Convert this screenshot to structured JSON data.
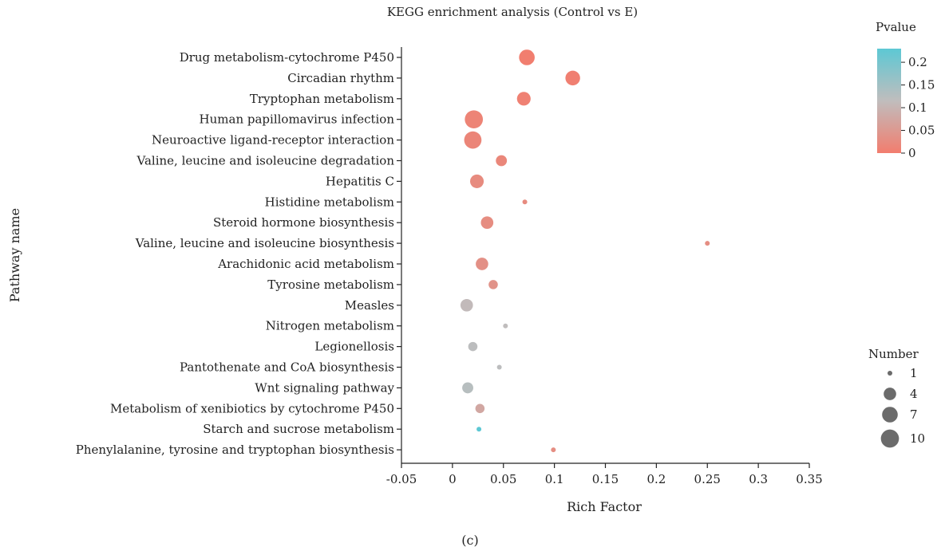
{
  "chart_data": {
    "type": "scatter",
    "title": "KEGG enrichment analysis (Control vs E)",
    "xlabel": "Rich Factor",
    "ylabel": "Pathway name",
    "caption": "(c)",
    "xlim": [
      -0.05,
      0.35
    ],
    "xticks": [
      "-0.05",
      "0",
      "0.05",
      "0.1",
      "0.15",
      "0.2",
      "0.25",
      "0.3",
      "0.35"
    ],
    "grid": false,
    "color_legend": {
      "title": "Pvalue",
      "min": 0,
      "max": 0.23,
      "ticks": [
        "0.2",
        "0.15",
        "0.1",
        "0.05",
        "0"
      ],
      "low_color": "#f27d6e",
      "mid_color": "#c0bdbd",
      "high_color": "#5dc8d4"
    },
    "size_legend": {
      "title": "Number",
      "entries": [
        {
          "label": "1",
          "value": 1
        },
        {
          "label": "4",
          "value": 4
        },
        {
          "label": "7",
          "value": 7
        },
        {
          "label": "10",
          "value": 10
        }
      ]
    },
    "points": [
      {
        "pathway": "Drug metabolism-cytochrome P450",
        "rich_factor": 0.073,
        "number": 7,
        "pvalue": 0.002
      },
      {
        "pathway": "Circadian rhythm",
        "rich_factor": 0.118,
        "number": 6,
        "pvalue": 0.004
      },
      {
        "pathway": "Tryptophan metabolism",
        "rich_factor": 0.07,
        "number": 5,
        "pvalue": 0.008
      },
      {
        "pathway": "Human papillomavirus infection",
        "rich_factor": 0.021,
        "number": 10,
        "pvalue": 0.012
      },
      {
        "pathway": "Neuroactive ligand-receptor interaction",
        "rich_factor": 0.02,
        "number": 9,
        "pvalue": 0.015
      },
      {
        "pathway": "Valine, leucine and isoleucine degradation",
        "rich_factor": 0.048,
        "number": 3,
        "pvalue": 0.018
      },
      {
        "pathway": "Hepatitis C",
        "rich_factor": 0.024,
        "number": 5,
        "pvalue": 0.025
      },
      {
        "pathway": "Histidine metabolism",
        "rich_factor": 0.071,
        "number": 1,
        "pvalue": 0.025
      },
      {
        "pathway": "Steroid hormone biosynthesis",
        "rich_factor": 0.034,
        "number": 4,
        "pvalue": 0.028
      },
      {
        "pathway": "Valine, leucine and isoleucine biosynthesis",
        "rich_factor": 0.25,
        "number": 1,
        "pvalue": 0.03
      },
      {
        "pathway": "Arachidonic acid metabolism",
        "rich_factor": 0.029,
        "number": 4,
        "pvalue": 0.035
      },
      {
        "pathway": "Tyrosine metabolism",
        "rich_factor": 0.04,
        "number": 2,
        "pvalue": 0.04
      },
      {
        "pathway": "Measles",
        "rich_factor": 0.014,
        "number": 4,
        "pvalue": 0.11
      },
      {
        "pathway": "Nitrogen metabolism",
        "rich_factor": 0.052,
        "number": 1,
        "pvalue": 0.115
      },
      {
        "pathway": "Legionellosis",
        "rich_factor": 0.02,
        "number": 2,
        "pvalue": 0.12
      },
      {
        "pathway": "Pantothenate and CoA biosynthesis",
        "rich_factor": 0.046,
        "number": 1,
        "pvalue": 0.12
      },
      {
        "pathway": "Wnt signaling pathway",
        "rich_factor": 0.015,
        "number": 3,
        "pvalue": 0.125
      },
      {
        "pathway": "Metabolism of xenibiotics by cytochrome P450",
        "rich_factor": 0.027,
        "number": 2,
        "pvalue": 0.075
      },
      {
        "pathway": "Starch and sucrose metabolism",
        "rich_factor": 0.026,
        "number": 1,
        "pvalue": 0.23
      },
      {
        "pathway": "Phenylalanine, tyrosine and tryptophan biosynthesis",
        "rich_factor": 0.099,
        "number": 1,
        "pvalue": 0.03
      }
    ]
  }
}
